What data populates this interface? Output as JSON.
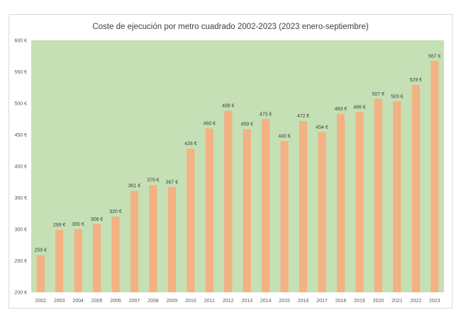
{
  "chart_data": {
    "type": "bar",
    "title": "Coste de ejecución por metro cuadrado 2002-2023 (2023 enero-septiembre)",
    "categories": [
      "2002",
      "2003",
      "2004",
      "2005",
      "2006",
      "2007",
      "2008",
      "2009",
      "2010",
      "2011",
      "2012",
      "2013",
      "2014",
      "2015",
      "2016",
      "2017",
      "2018",
      "2019",
      "2020",
      "2021",
      "2022",
      "2023"
    ],
    "values": [
      259,
      299,
      300,
      308,
      320,
      361,
      370,
      367,
      428,
      460,
      488,
      459,
      475,
      440,
      472,
      454,
      483,
      486,
      507,
      503,
      529,
      567
    ],
    "data_labels": [
      "259 €",
      "299 €",
      "300 €",
      "308 €",
      "320 €",
      "361 €",
      "370 €",
      "367 €",
      "428 €",
      "460 €",
      "488 €",
      "459 €",
      "475 €",
      "440 €",
      "472 €",
      "454 €",
      "483 €",
      "486 €",
      "507 €",
      "503 €",
      "529 €",
      "567 €"
    ],
    "y_ticks": [
      "200 €",
      "250 €",
      "300 €",
      "350 €",
      "400 €",
      "450 €",
      "500 €",
      "550 €",
      "600 €"
    ],
    "ylim": [
      200,
      600
    ],
    "xlabel": "",
    "ylabel": "",
    "grid": false,
    "colors": {
      "bar": "#f4b183",
      "plot_area": "#c5e0b4"
    }
  }
}
